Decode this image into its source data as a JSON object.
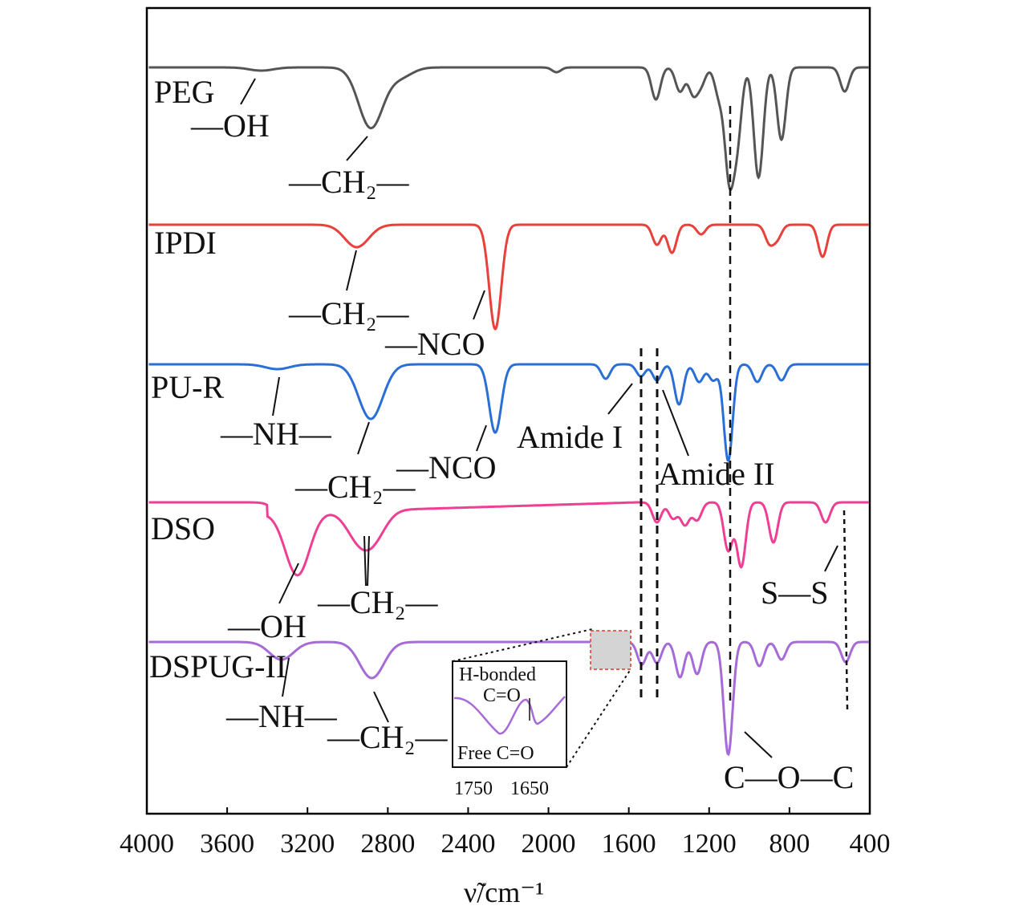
{
  "chart_data": {
    "type": "line",
    "title": "",
    "xlabel": "ν̃/cm⁻¹",
    "ylabel": "",
    "xlim": [
      4000,
      400
    ],
    "x_reversed": true,
    "grid": false,
    "legend": "none",
    "xticks": [
      "4000",
      "3600",
      "3200",
      "2800",
      "2400",
      "2000",
      "1600",
      "1200",
      "800",
      "400"
    ],
    "series": [
      {
        "name": "PEG",
        "color": "#555555",
        "peaks": [
          [
            3430,
            4
          ],
          [
            2885,
            75
          ],
          [
            2740,
            12
          ],
          [
            1960,
            6
          ],
          [
            1465,
            40
          ],
          [
            1345,
            30
          ],
          [
            1280,
            32
          ],
          [
            1240,
            20
          ],
          [
            1150,
            35
          ],
          [
            1100,
            130
          ],
          [
            1060,
            85
          ],
          [
            960,
            85
          ],
          [
            945,
            60
          ],
          [
            840,
            90
          ],
          [
            525,
            30
          ]
        ]
      },
      {
        "name": "IPDI",
        "color": "#e8403a",
        "peaks": [
          [
            2955,
            28
          ],
          [
            2265,
            130
          ],
          [
            1460,
            25
          ],
          [
            1385,
            35
          ],
          [
            1240,
            12
          ],
          [
            900,
            22
          ],
          [
            860,
            16
          ],
          [
            635,
            40
          ]
        ]
      },
      {
        "name": "PU-R",
        "color": "#2a6fd6",
        "peaks": [
          [
            3350,
            6
          ],
          [
            2885,
            68
          ],
          [
            2265,
            85
          ],
          [
            1715,
            18
          ],
          [
            1540,
            15
          ],
          [
            1460,
            20
          ],
          [
            1350,
            50
          ],
          [
            1250,
            22
          ],
          [
            1180,
            20
          ],
          [
            1105,
            120
          ],
          [
            960,
            22
          ],
          [
            840,
            20
          ]
        ]
      },
      {
        "name": "DSO",
        "color": "#ee3f94",
        "peaks": [
          [
            3250,
            78
          ],
          [
            2950,
            30
          ],
          [
            2870,
            32
          ],
          [
            1460,
            25
          ],
          [
            1380,
            20
          ],
          [
            1320,
            28
          ],
          [
            1260,
            22
          ],
          [
            1105,
            60
          ],
          [
            1040,
            80
          ],
          [
            880,
            50
          ],
          [
            620,
            25
          ]
        ]
      },
      {
        "name": "DSPUG-II",
        "color": "#a66bd6",
        "peaks": [
          [
            3330,
            22
          ],
          [
            2880,
            45
          ],
          [
            1720,
            14
          ],
          [
            1655,
            18
          ],
          [
            1535,
            28
          ],
          [
            1460,
            26
          ],
          [
            1345,
            44
          ],
          [
            1260,
            40
          ],
          [
            1105,
            140
          ],
          [
            950,
            30
          ],
          [
            840,
            22
          ],
          [
            520,
            25
          ]
        ]
      }
    ],
    "annotations": {
      "peg": [
        "PEG",
        "—OH",
        "—CH₂—"
      ],
      "ipdi": [
        "IPDI",
        "—CH₂—",
        "—NCO"
      ],
      "pur": [
        "PU-R",
        "—NH—",
        "—CH₂—",
        "—NCO",
        "Amide I",
        "Amide II"
      ],
      "dso": [
        "DSO",
        "—OH",
        "—CH₂—",
        "S—S"
      ],
      "dspug": [
        "DSPUG-II",
        "—NH—",
        "—CH₂—",
        "C—O—C"
      ]
    },
    "inset": {
      "top_label": "H-bonded",
      "mid_label": "C=O",
      "bottom_label": "Free C=O",
      "ticks": [
        "1750",
        "1650"
      ]
    }
  }
}
